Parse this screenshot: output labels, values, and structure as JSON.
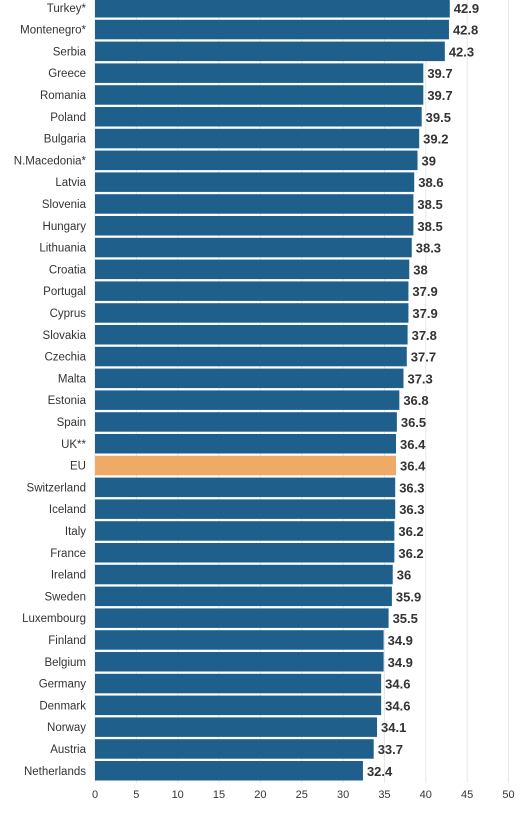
{
  "chart_data": {
    "type": "bar",
    "orientation": "horizontal",
    "categories": [
      "Turkey*",
      "Montenegro*",
      "Serbia",
      "Greece",
      "Romania",
      "Poland",
      "Bulgaria",
      "N.Macedonia*",
      "Latvia",
      "Slovenia",
      "Hungary",
      "Lithuania",
      "Croatia",
      "Portugal",
      "Cyprus",
      "Slovakia",
      "Czechia",
      "Malta",
      "Estonia",
      "Spain",
      "UK**",
      "EU",
      "Switzerland",
      "Iceland",
      "Italy",
      "France",
      "Ireland",
      "Sweden",
      "Luxembourg",
      "Finland",
      "Belgium",
      "Germany",
      "Denmark",
      "Norway",
      "Austria",
      "Netherlands"
    ],
    "values": [
      42.9,
      42.8,
      42.3,
      39.7,
      39.7,
      39.5,
      39.2,
      39,
      38.6,
      38.5,
      38.5,
      38.3,
      38,
      37.9,
      37.9,
      37.8,
      37.7,
      37.3,
      36.8,
      36.5,
      36.4,
      36.4,
      36.3,
      36.3,
      36.2,
      36.2,
      36,
      35.9,
      35.5,
      34.9,
      34.9,
      34.6,
      34.6,
      34.1,
      33.7,
      32.4
    ],
    "value_labels": [
      "42.9",
      "42.8",
      "42.3",
      "39.7",
      "39.7",
      "39.5",
      "39.2",
      "39",
      "38.6",
      "38.5",
      "38.5",
      "38.3",
      "38",
      "37.9",
      "37.9",
      "37.8",
      "37.7",
      "37.3",
      "36.8",
      "36.5",
      "36.4",
      "36.4",
      "36.3",
      "36.3",
      "36.2",
      "36.2",
      "36",
      "35.9",
      "35.5",
      "34.9",
      "34.9",
      "34.6",
      "34.6",
      "34.1",
      "33.7",
      "32.4"
    ],
    "highlight": "EU",
    "xlim": [
      0,
      50
    ],
    "x_ticks": [
      "0",
      "5",
      "10",
      "15",
      "20",
      "25",
      "30",
      "35",
      "40",
      "45",
      "50"
    ],
    "grid": "vertical",
    "title": "",
    "xlabel": "",
    "ylabel": "",
    "colors": {
      "bar": "#1f5f8b",
      "highlight": "#eeaa66",
      "label": "#333333"
    }
  }
}
